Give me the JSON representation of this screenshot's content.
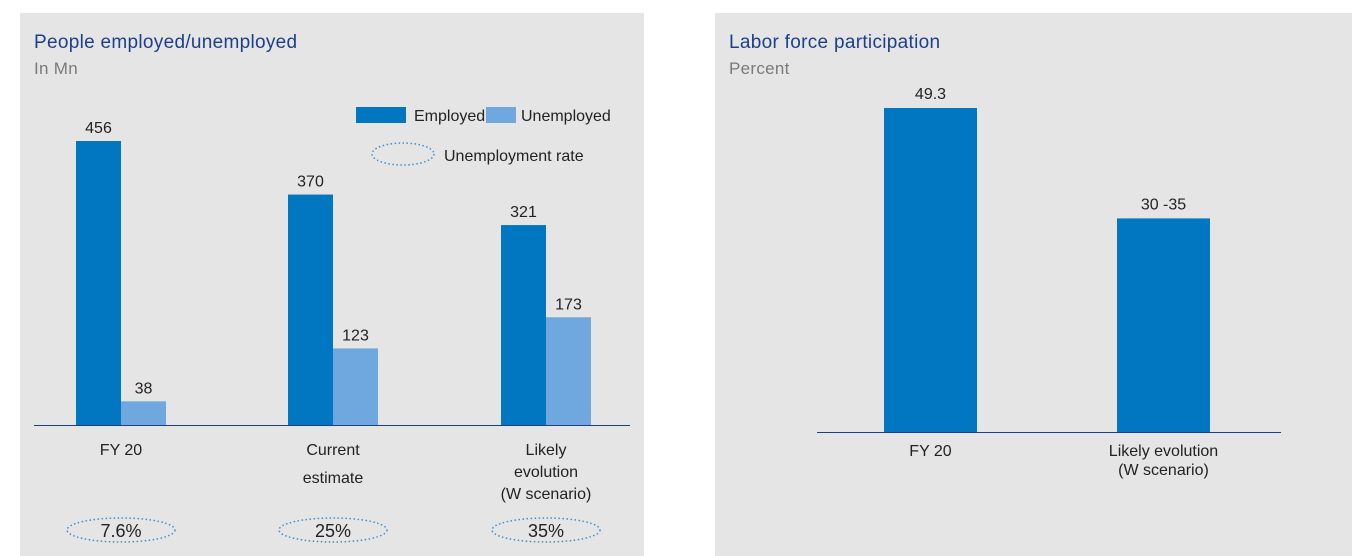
{
  "colors": {
    "employed": "#0077c0",
    "unemployed": "#6fa8de",
    "panel_bg": "#e6e5e6",
    "title": "#1c3f8c",
    "text": "#222222",
    "rate_outline": "#3b8fd0"
  },
  "chart_data": [
    {
      "type": "bar",
      "title": "People employed/unemployed",
      "subtitle": "In Mn",
      "categories": [
        [
          "FY 20"
        ],
        [
          "Current",
          "estimate"
        ],
        [
          "Likely",
          "evolution",
          "(W scenario)"
        ]
      ],
      "series": [
        {
          "name": "Employed",
          "values": [
            456,
            370,
            321
          ],
          "labels": [
            "456",
            "370",
            "321"
          ]
        },
        {
          "name": "Unemployed",
          "values": [
            38,
            123,
            173
          ],
          "labels": [
            "38",
            "123",
            "173"
          ]
        }
      ],
      "rate_legend": "Unemployment rate",
      "rates": [
        "7.6%",
        "25%",
        "35%"
      ],
      "ylim": [
        0,
        500
      ],
      "grid": false,
      "legend_position": "top-right"
    },
    {
      "type": "bar",
      "title": "Labor force participation",
      "subtitle": "Percent",
      "categories": [
        [
          "FY 20"
        ],
        [
          "Likely evolution",
          "(W scenario)"
        ]
      ],
      "series": [
        {
          "values": [
            49.3,
            32.5
          ],
          "labels": [
            "49.3",
            "30 -35"
          ]
        }
      ],
      "ylim": [
        0,
        52
      ],
      "grid": false
    }
  ]
}
